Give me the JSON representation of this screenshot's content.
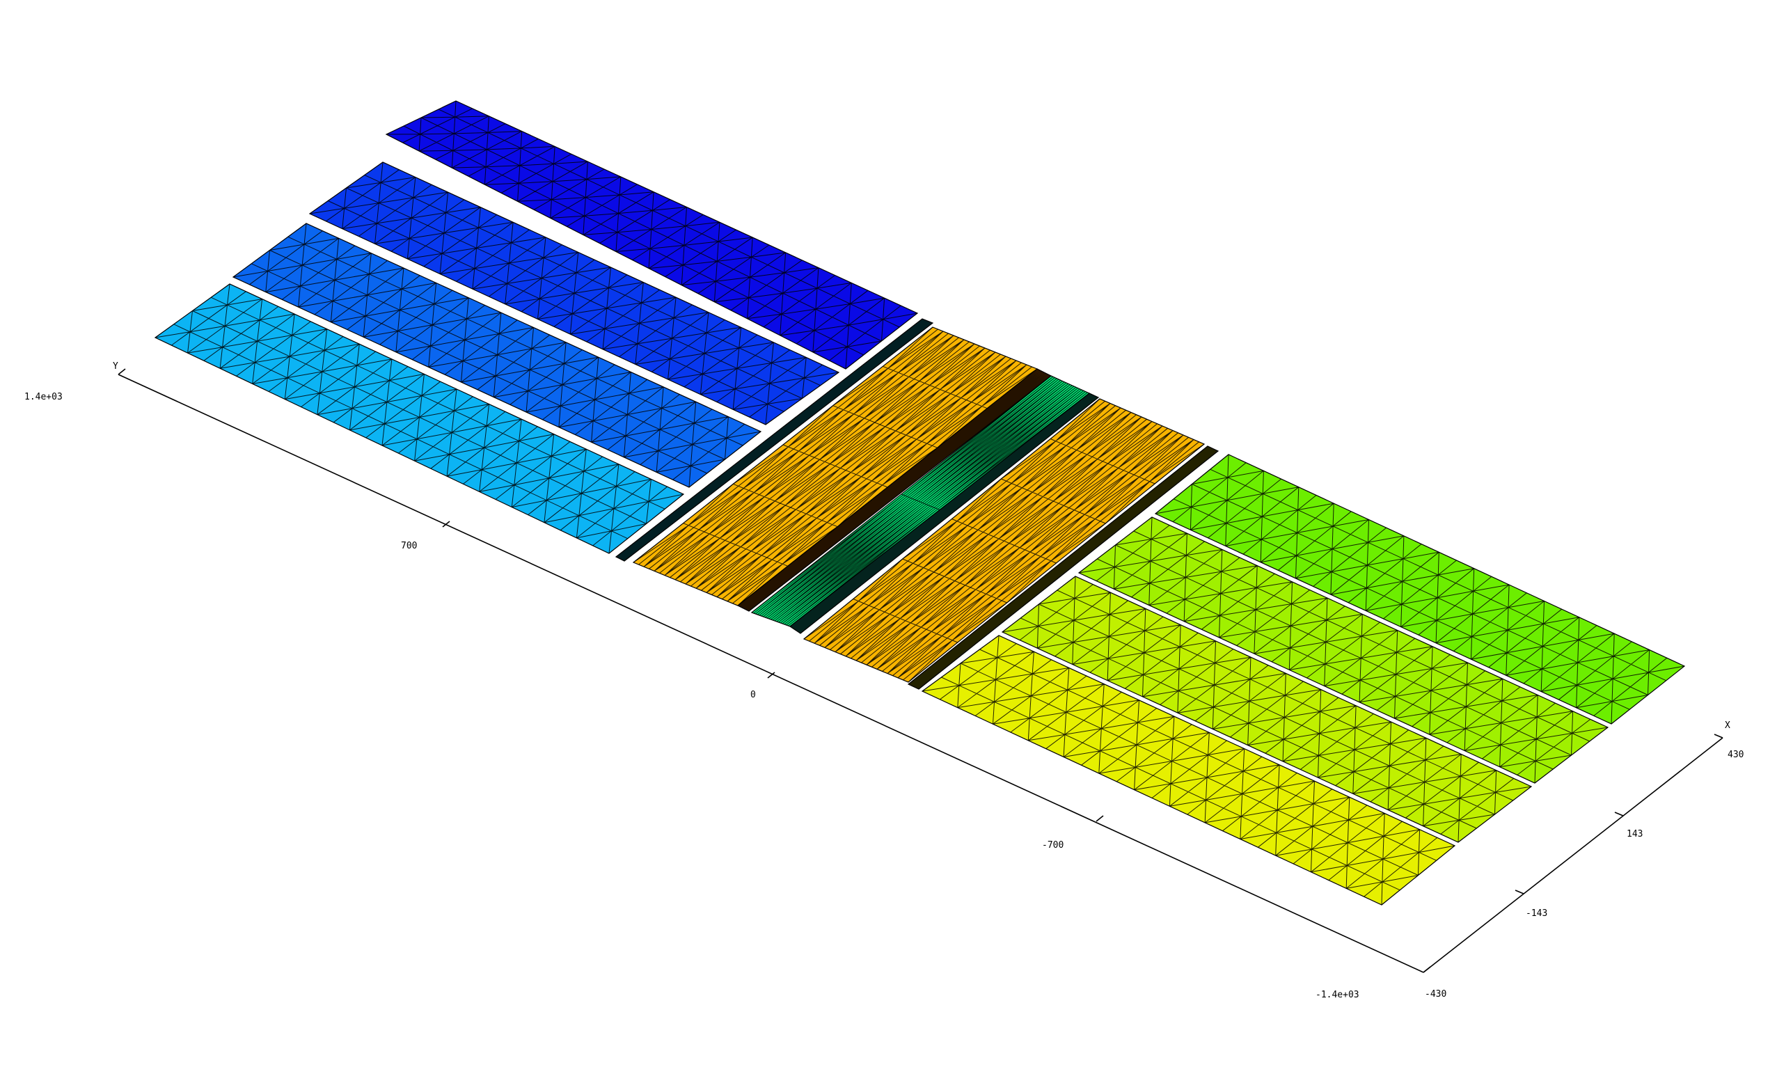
{
  "plot": {
    "x_axis": {
      "name": "X",
      "tick_labels": [
        "430",
        "143",
        "-143",
        "-430"
      ]
    },
    "y_axis": {
      "name": "Y",
      "tick_labels": [
        "1.4e+03",
        "700",
        "0",
        "-700",
        "-1.4e+03"
      ]
    }
  },
  "mesh_panels": [
    {
      "id": "panel-1",
      "color": "#0a0ae6"
    },
    {
      "id": "panel-2",
      "color": "#0838ee"
    },
    {
      "id": "panel-3",
      "color": "#0a66f0"
    },
    {
      "id": "panel-4",
      "color": "#0cb4f4"
    },
    {
      "id": "strip-cyan-1",
      "color": "#12d2e6"
    },
    {
      "id": "panel-orange-1",
      "color": "#f8b400"
    },
    {
      "id": "strip-orange-dark",
      "color": "#f07800"
    },
    {
      "id": "strip-green-1",
      "color": "#00f07a"
    },
    {
      "id": "strip-cyan-2",
      "color": "#20e8c8"
    },
    {
      "id": "panel-orange-2",
      "color": "#f8b400"
    },
    {
      "id": "strip-yellow-1",
      "color": "#e8e000"
    },
    {
      "id": "panel-yellow",
      "color": "#e6f000"
    },
    {
      "id": "panel-lime-1",
      "color": "#c0f000"
    },
    {
      "id": "panel-lime-2",
      "color": "#a0f000"
    },
    {
      "id": "panel-green",
      "color": "#6cee00"
    }
  ]
}
